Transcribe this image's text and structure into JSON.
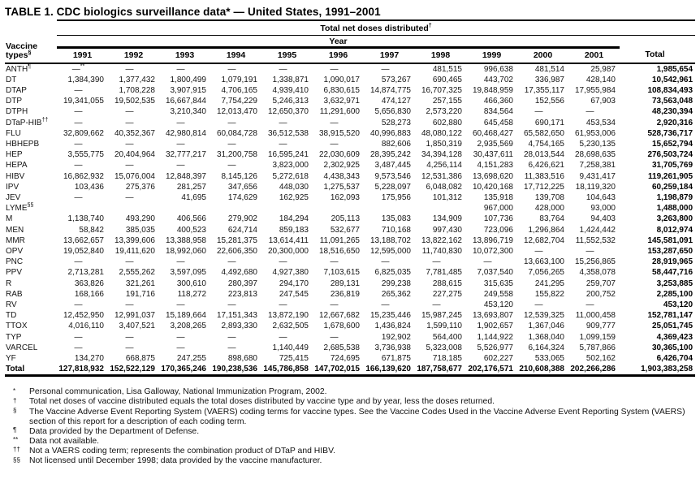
{
  "title": "TABLE 1. CDC biologics surveillance data* — United States, 1991–2001",
  "table": {
    "col_group_header": {
      "text": "Total net doses distributed",
      "sup": "†"
    },
    "year_group_header": "Year",
    "row_header": {
      "line1": "Vaccine",
      "line2": "types",
      "sup": "§"
    },
    "year_columns": [
      "1991",
      "1992",
      "1993",
      "1994",
      "1995",
      "1996",
      "1997",
      "1998",
      "1999",
      "2000",
      "2001"
    ],
    "total_column": "Total",
    "rows": [
      {
        "label": "ANTH",
        "sup": "¶",
        "values": [
          "—**",
          "—",
          "—",
          "—",
          "—",
          "—",
          "—",
          "481,515",
          "996,638",
          "481,514",
          "25,987"
        ],
        "total": "1,985,654"
      },
      {
        "label": "DT",
        "values": [
          "1,384,390",
          "1,377,432",
          "1,800,499",
          "1,079,191",
          "1,338,871",
          "1,090,017",
          "573,267",
          "690,465",
          "443,702",
          "336,987",
          "428,140"
        ],
        "total": "10,542,961"
      },
      {
        "label": "DTAP",
        "values": [
          "—",
          "1,708,228",
          "3,907,915",
          "4,706,165",
          "4,939,410",
          "6,830,615",
          "14,874,775",
          "16,707,325",
          "19,848,959",
          "17,355,117",
          "17,955,984"
        ],
        "total": "108,834,493"
      },
      {
        "label": "DTP",
        "values": [
          "19,341,055",
          "19,502,535",
          "16,667,844",
          "7,754,229",
          "5,246,313",
          "3,632,971",
          "474,127",
          "257,155",
          "466,360",
          "152,556",
          "67,903"
        ],
        "total": "73,563,048"
      },
      {
        "label": "DTPH",
        "values": [
          "—",
          "—",
          "3,210,340",
          "12,013,470",
          "12,650,370",
          "11,291,600",
          "5,656,830",
          "2,573,220",
          "834,564",
          "—",
          "—"
        ],
        "total": "48,230,394"
      },
      {
        "label": "DTaP-HIB",
        "sup": "††",
        "values": [
          "—",
          "—",
          "—",
          "—",
          "—",
          "—",
          "528,273",
          "602,880",
          "645,458",
          "690,171",
          "453,534"
        ],
        "total": "2,920,316"
      },
      {
        "label": "FLU",
        "values": [
          "32,809,662",
          "40,352,367",
          "42,980,814",
          "60,084,728",
          "36,512,538",
          "38,915,520",
          "40,996,883",
          "48,080,122",
          "60,468,427",
          "65,582,650",
          "61,953,006"
        ],
        "total": "528,736,717"
      },
      {
        "label": "HBHEPB",
        "values": [
          "—",
          "—",
          "—",
          "—",
          "—",
          "—",
          "882,606",
          "1,850,319",
          "2,935,569",
          "4,754,165",
          "5,230,135"
        ],
        "total": "15,652,794"
      },
      {
        "label": "HEP",
        "values": [
          "3,555,775",
          "20,404,964",
          "32,777,217",
          "31,200,758",
          "16,595,241",
          "22,030,609",
          "28,395,242",
          "34,394,128",
          "30,437,611",
          "28,013,544",
          "28,698,635"
        ],
        "total": "276,503,724"
      },
      {
        "label": "HEPA",
        "values": [
          "—",
          "—",
          "—",
          "—",
          "3,823,000",
          "2,302,925",
          "3,487,445",
          "4,256,114",
          "4,151,283",
          "6,426,621",
          "7,258,381"
        ],
        "total": "31,705,769"
      },
      {
        "label": "HIBV",
        "values": [
          "16,862,932",
          "15,076,004",
          "12,848,397",
          "8,145,126",
          "5,272,618",
          "4,438,343",
          "9,573,546",
          "12,531,386",
          "13,698,620",
          "11,383,516",
          "9,431,417"
        ],
        "total": "119,261,905"
      },
      {
        "label": "IPV",
        "values": [
          "103,436",
          "275,376",
          "281,257",
          "347,656",
          "448,030",
          "1,275,537",
          "5,228,097",
          "6,048,082",
          "10,420,168",
          "17,712,225",
          "18,119,320"
        ],
        "total": "60,259,184"
      },
      {
        "label": "JEV",
        "values": [
          "—",
          "—",
          "41,695",
          "174,629",
          "162,925",
          "162,093",
          "175,956",
          "101,312",
          "135,918",
          "139,708",
          "104,643"
        ],
        "total": "1,198,879"
      },
      {
        "label": "LYME",
        "sup": "§§",
        "values": [
          "",
          "",
          "",
          "",
          "",
          "",
          "",
          "",
          "967,000",
          "428,000",
          "93,000"
        ],
        "total": "1,488,000"
      },
      {
        "label": "M",
        "values": [
          "1,138,740",
          "493,290",
          "406,566",
          "279,902",
          "184,294",
          "205,113",
          "135,083",
          "134,909",
          "107,736",
          "83,764",
          "94,403"
        ],
        "total": "3,263,800"
      },
      {
        "label": "MEN",
        "values": [
          "58,842",
          "385,035",
          "400,523",
          "624,714",
          "859,183",
          "532,677",
          "710,168",
          "997,430",
          "723,096",
          "1,296,864",
          "1,424,442"
        ],
        "total": "8,012,974"
      },
      {
        "label": "MMR",
        "values": [
          "13,662,657",
          "13,399,606",
          "13,388,958",
          "15,281,375",
          "13,614,411",
          "11,091,265",
          "13,188,702",
          "13,822,162",
          "13,896,719",
          "12,682,704",
          "11,552,532"
        ],
        "total": "145,581,091"
      },
      {
        "label": "OPV",
        "values": [
          "19,052,840",
          "19,411,620",
          "18,992,060",
          "22,606,350",
          "20,300,000",
          "18,516,650",
          "12,595,000",
          "11,740,830",
          "10,072,300",
          "—",
          "—"
        ],
        "total": "153,287,650"
      },
      {
        "label": "PNC",
        "values": [
          "—",
          "—",
          "—",
          "—",
          "—",
          "—",
          "—",
          "—",
          "—",
          "13,663,100",
          "15,256,865"
        ],
        "total": "28,919,965"
      },
      {
        "label": "PPV",
        "values": [
          "2,713,281",
          "2,555,262",
          "3,597,095",
          "4,492,680",
          "4,927,380",
          "7,103,615",
          "6,825,035",
          "7,781,485",
          "7,037,540",
          "7,056,265",
          "4,358,078"
        ],
        "total": "58,447,716"
      },
      {
        "label": "R",
        "values": [
          "363,826",
          "321,261",
          "300,610",
          "280,397",
          "294,170",
          "289,131",
          "299,238",
          "288,615",
          "315,635",
          "241,295",
          "259,707"
        ],
        "total": "3,253,885"
      },
      {
        "label": "RAB",
        "values": [
          "168,166",
          "191,716",
          "118,272",
          "223,813",
          "247,545",
          "236,819",
          "265,362",
          "227,275",
          "249,558",
          "155,822",
          "200,752"
        ],
        "total": "2,285,100"
      },
      {
        "label": "RV",
        "values": [
          "—",
          "—",
          "—",
          "—",
          "—",
          "—",
          "—",
          "—",
          "453,120",
          "—",
          "—"
        ],
        "total": "453,120"
      },
      {
        "label": "TD",
        "values": [
          "12,452,950",
          "12,991,037",
          "15,189,664",
          "17,151,343",
          "13,872,190",
          "12,667,682",
          "15,235,446",
          "15,987,245",
          "13,693,807",
          "12,539,325",
          "11,000,458"
        ],
        "total": "152,781,147"
      },
      {
        "label": "TTOX",
        "values": [
          "4,016,110",
          "3,407,521",
          "3,208,265",
          "2,893,330",
          "2,632,505",
          "1,678,600",
          "1,436,824",
          "1,599,110",
          "1,902,657",
          "1,367,046",
          "909,777"
        ],
        "total": "25,051,745"
      },
      {
        "label": "TYP",
        "values": [
          "—",
          "—",
          "—",
          "—",
          "—",
          "—",
          "192,902",
          "564,400",
          "1,144,922",
          "1,368,040",
          "1,099,159"
        ],
        "total": "4,369,423"
      },
      {
        "label": "VARCEL",
        "values": [
          "—",
          "—",
          "—",
          "—",
          "1,140,449",
          "2,685,538",
          "3,736,938",
          "5,323,008",
          "5,526,977",
          "6,164,324",
          "5,787,866"
        ],
        "total": "30,365,100"
      },
      {
        "label": "YF",
        "values": [
          "134,270",
          "668,875",
          "247,255",
          "898,680",
          "725,415",
          "724,695",
          "671,875",
          "718,185",
          "602,227",
          "533,065",
          "502,162"
        ],
        "total": "6,426,704"
      }
    ],
    "total_row": {
      "label": "Total",
      "values": [
        "127,818,932",
        "152,522,129",
        "170,365,246",
        "190,238,536",
        "145,786,858",
        "147,702,015",
        "166,139,620",
        "187,758,677",
        "202,176,571",
        "210,608,388",
        "202,266,286"
      ],
      "total": "1,903,383,258"
    }
  },
  "footnotes": [
    {
      "marker": "*",
      "text": "Personal communication, Lisa Galloway, National Immunization Program, 2002."
    },
    {
      "marker": "†",
      "text": "Total net doses of vaccine distributed equals the total doses distributed by vaccine type and by year, less the doses returned."
    },
    {
      "marker": "§",
      "text": "The Vaccine Adverse Event Reporting System (VAERS) coding terms for vaccine types. See the Vaccine Codes Used in the Vaccine Adverse Event Reporting System (VAERS) section of this report for a description of each coding term."
    },
    {
      "marker": "¶",
      "text": "Data provided by the Department of Defense."
    },
    {
      "marker": "**",
      "text": "Data not available."
    },
    {
      "marker": "††",
      "text": "Not a VAERS coding term; represents the combination product of DTaP and HIBV."
    },
    {
      "marker": "§§",
      "text": "Not licensed until December 1998; data provided by the vaccine manufacturer."
    }
  ]
}
